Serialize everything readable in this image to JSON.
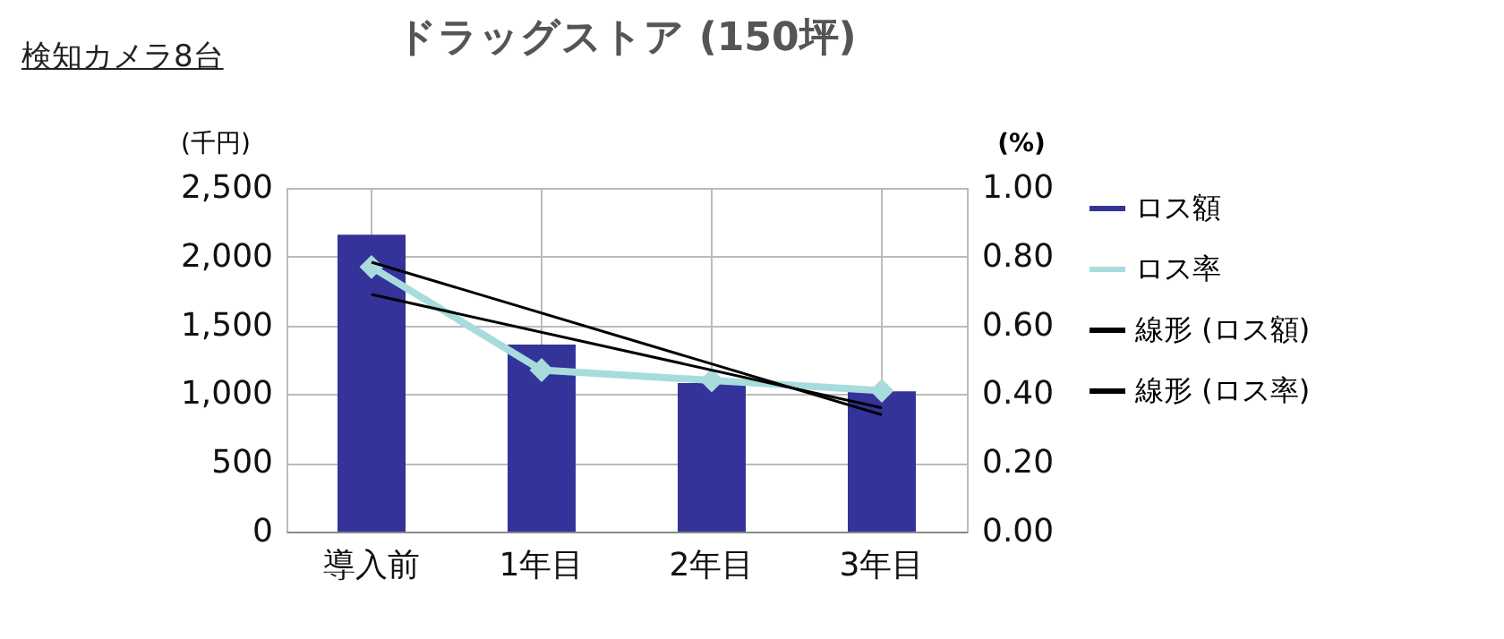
{
  "chart_data": {
    "type": "bar",
    "title": "ドラッグストア (150坪)",
    "annotations": [
      "検知カメラ8台"
    ],
    "ylabel": "(千円)",
    "y2label": "(%)",
    "categories": [
      "導入前",
      "1年目",
      "2年目",
      "3年目"
    ],
    "series": [
      {
        "name": "ロス額",
        "color": "#333399",
        "values": [
          2160,
          1360,
          1080,
          1020
        ]
      },
      {
        "name": "ロス率",
        "type": "line",
        "axis": "y2",
        "color": "#a8dcdc",
        "marker": "diamond",
        "values": [
          0.77,
          0.47,
          0.44,
          0.41
        ]
      },
      {
        "name": "線形 (ロス額)",
        "type": "line",
        "color": "#000000",
        "x": [
          "導入前",
          "3年目"
        ],
        "values": [
          1960,
          850
        ]
      },
      {
        "name": "線形 (ロス率)",
        "type": "line",
        "axis": "y2",
        "color": "#000000",
        "x": [
          "導入前",
          "3年目"
        ],
        "values": [
          0.69,
          0.36
        ]
      }
    ],
    "ylim": [
      0,
      2500
    ],
    "yticks": [
      0,
      500,
      {
        "value": 1000,
        "label": "1,000"
      },
      {
        "value": 1500,
        "label": "1,500"
      },
      {
        "value": 2000,
        "label": "2,000"
      },
      {
        "value": 2500,
        "label": "2,500"
      }
    ],
    "y2lim": [
      0,
      1
    ],
    "y2ticks": [
      {
        "value": 0,
        "label": "0.00"
      },
      {
        "value": 0.2,
        "label": "0.20"
      },
      {
        "value": 0.4,
        "label": "0.40"
      },
      {
        "value": 0.6,
        "label": "0.60"
      },
      {
        "value": 0.8,
        "label": "0.80"
      },
      {
        "value": 1,
        "label": "1.00"
      }
    ],
    "grid": true,
    "legend": "right"
  }
}
